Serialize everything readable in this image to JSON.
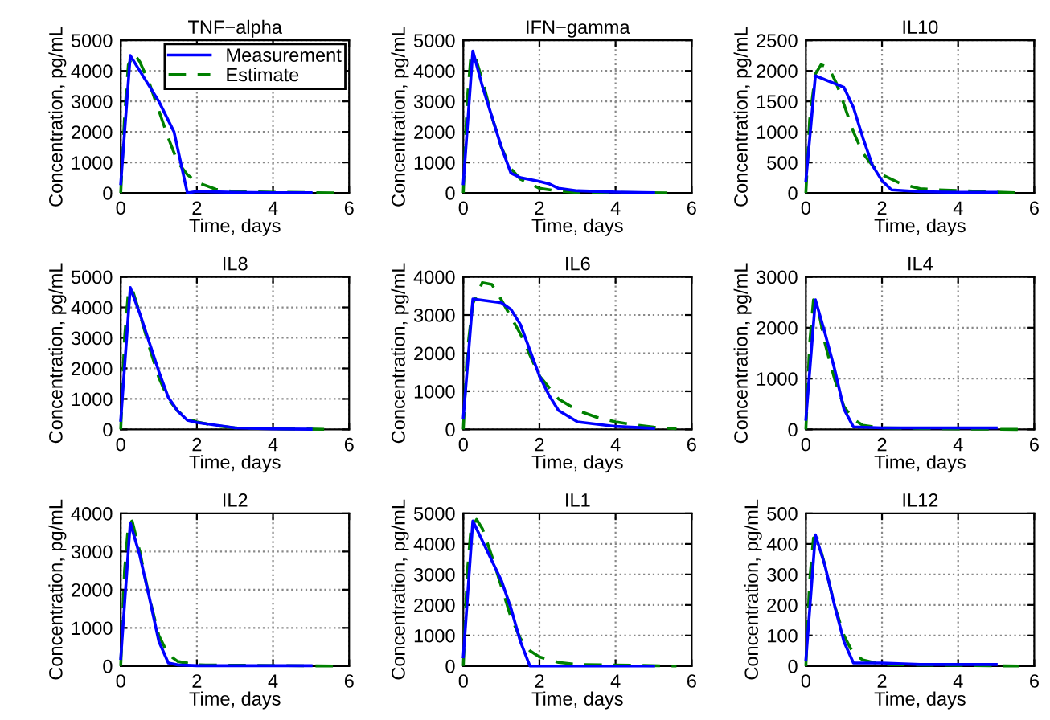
{
  "chart_data": [
    {
      "type": "line",
      "title": "TNF−alpha",
      "xlabel": "Time, days",
      "ylabel": "Concentration, pg/mL",
      "xlim": [
        0,
        6
      ],
      "xticks": [
        0,
        2,
        4,
        6
      ],
      "ylim": [
        0,
        5000
      ],
      "yticks": [
        0,
        1000,
        2000,
        3000,
        4000,
        5000
      ],
      "grid": true,
      "legend": "top right",
      "series": [
        {
          "name": "Measurement",
          "color": "#0000ff",
          "line_style": "solid",
          "x": [
            0,
            0.25,
            1,
            1.4,
            1.75,
            2,
            3,
            4,
            5
          ],
          "values": [
            300,
            4500,
            3000,
            2000,
            0,
            50,
            20,
            10,
            10
          ]
        },
        {
          "name": "Estimate",
          "color": "#008000",
          "line_style": "dashed",
          "x": [
            0,
            0.1,
            0.2,
            0.35,
            0.5,
            0.75,
            1,
            1.25,
            1.5,
            1.75,
            2,
            2.5,
            3,
            5.6
          ],
          "values": [
            0,
            2500,
            4200,
            4550,
            4300,
            3600,
            2700,
            1800,
            1000,
            600,
            350,
            120,
            40,
            0
          ]
        }
      ]
    },
    {
      "type": "line",
      "title": "IFN−gamma",
      "xlabel": "Time, days",
      "ylabel": "Concentration, pg/mL",
      "xlim": [
        0,
        6
      ],
      "xticks": [
        0,
        2,
        4,
        6
      ],
      "ylim": [
        0,
        5000
      ],
      "yticks": [
        0,
        1000,
        2000,
        3000,
        4000,
        5000
      ],
      "grid": true,
      "series": [
        {
          "color": "#0000ff",
          "line_style": "solid",
          "x": [
            0,
            0.25,
            0.5,
            1,
            1.25,
            1.5,
            2,
            2.25,
            2.5,
            3,
            4,
            5
          ],
          "values": [
            300,
            4650,
            3500,
            1500,
            650,
            500,
            380,
            300,
            150,
            70,
            30,
            10
          ]
        },
        {
          "color": "#008000",
          "line_style": "dashed",
          "x": [
            0,
            0.1,
            0.2,
            0.3,
            0.5,
            0.75,
            1,
            1.25,
            1.5,
            2,
            2.5,
            3,
            5.6
          ],
          "values": [
            0,
            3000,
            4500,
            4500,
            3700,
            2500,
            1500,
            800,
            450,
            150,
            60,
            20,
            0
          ]
        }
      ]
    },
    {
      "type": "line",
      "title": "IL10",
      "xlabel": "Time, days",
      "ylabel": "Concentration, pg/mL",
      "xlim": [
        0,
        6
      ],
      "xticks": [
        0,
        2,
        4,
        6
      ],
      "ylim": [
        0,
        2500
      ],
      "yticks": [
        0,
        500,
        1000,
        1500,
        2000,
        2500
      ],
      "grid": true,
      "series": [
        {
          "color": "#0000ff",
          "line_style": "solid",
          "x": [
            0,
            0.25,
            1,
            1.25,
            1.5,
            1.75,
            2,
            2.25,
            3,
            4,
            5
          ],
          "values": [
            200,
            1920,
            1730,
            1400,
            900,
            450,
            200,
            50,
            20,
            10,
            10
          ]
        },
        {
          "color": "#008000",
          "line_style": "dashed",
          "x": [
            0,
            0.1,
            0.25,
            0.4,
            0.6,
            0.8,
            1,
            1.25,
            1.5,
            1.75,
            2,
            2.5,
            3,
            3.5,
            5.6
          ],
          "values": [
            0,
            1200,
            1950,
            2100,
            2050,
            1800,
            1450,
            1000,
            650,
            450,
            300,
            150,
            70,
            50,
            0
          ]
        }
      ]
    },
    {
      "type": "line",
      "title": "IL8",
      "xlabel": "Time, days",
      "ylabel": "Concentration, pg/mL",
      "xlim": [
        0,
        6
      ],
      "xticks": [
        0,
        2,
        4,
        6
      ],
      "ylim": [
        0,
        5000
      ],
      "yticks": [
        0,
        1000,
        2000,
        3000,
        4000,
        5000
      ],
      "grid": true,
      "series": [
        {
          "color": "#0000ff",
          "line_style": "solid",
          "x": [
            0,
            0.25,
            0.5,
            1,
            1.25,
            1.5,
            1.75,
            2,
            3,
            4,
            5
          ],
          "values": [
            300,
            4650,
            3800,
            1900,
            1050,
            600,
            300,
            230,
            50,
            20,
            10
          ]
        },
        {
          "color": "#008000",
          "line_style": "dashed",
          "x": [
            0,
            0.1,
            0.2,
            0.3,
            0.5,
            0.75,
            1,
            1.25,
            1.5,
            1.75,
            2,
            2.5,
            3,
            5.6
          ],
          "values": [
            0,
            3000,
            4500,
            4600,
            3800,
            2700,
            1700,
            1000,
            600,
            350,
            250,
            120,
            50,
            0
          ]
        }
      ]
    },
    {
      "type": "line",
      "title": "IL6",
      "xlabel": "Time, days",
      "ylabel": "Concentration, pg/mL",
      "xlim": [
        0,
        6
      ],
      "xticks": [
        0,
        2,
        4,
        6
      ],
      "ylim": [
        0,
        4000
      ],
      "yticks": [
        0,
        1000,
        2000,
        3000,
        4000
      ],
      "grid": true,
      "series": [
        {
          "color": "#0000ff",
          "line_style": "solid",
          "x": [
            0,
            0.25,
            1,
            1.25,
            1.5,
            2,
            2.25,
            2.5,
            3,
            4,
            5
          ],
          "values": [
            300,
            3420,
            3320,
            3150,
            2750,
            1400,
            900,
            500,
            200,
            80,
            30
          ]
        },
        {
          "color": "#008000",
          "line_style": "dashed",
          "x": [
            0,
            0.1,
            0.25,
            0.5,
            0.75,
            1,
            1.5,
            2,
            2.5,
            3,
            3.5,
            4,
            4.5,
            5,
            5.6
          ],
          "values": [
            0,
            2000,
            3300,
            3850,
            3800,
            3400,
            2500,
            1400,
            800,
            500,
            320,
            200,
            120,
            60,
            20
          ]
        }
      ]
    },
    {
      "type": "line",
      "title": "IL4",
      "xlabel": "Time, days",
      "ylabel": "Concentration, pg/mL",
      "xlim": [
        0,
        6
      ],
      "xticks": [
        0,
        2,
        4,
        6
      ],
      "ylim": [
        0,
        3000
      ],
      "yticks": [
        0,
        1000,
        2000,
        3000
      ],
      "grid": true,
      "series": [
        {
          "color": "#0000ff",
          "line_style": "solid",
          "x": [
            0,
            0.25,
            0.5,
            0.75,
            1,
            1.25,
            2,
            3,
            4,
            5
          ],
          "values": [
            200,
            2550,
            1900,
            1200,
            400,
            50,
            30,
            30,
            30,
            30
          ]
        },
        {
          "color": "#008000",
          "line_style": "dashed",
          "x": [
            0,
            0.1,
            0.2,
            0.3,
            0.5,
            0.75,
            1,
            1.25,
            1.5,
            2,
            3,
            5.6
          ],
          "values": [
            0,
            1700,
            2550,
            2450,
            1700,
            1000,
            450,
            200,
            80,
            30,
            20,
            0
          ]
        }
      ]
    },
    {
      "type": "line",
      "title": "IL2",
      "xlabel": "Time, days",
      "ylabel": "Concentration, pg/mL",
      "xlim": [
        0,
        6
      ],
      "xticks": [
        0,
        2,
        4,
        6
      ],
      "ylim": [
        0,
        4000
      ],
      "yticks": [
        0,
        1000,
        2000,
        3000,
        4000
      ],
      "grid": true,
      "series": [
        {
          "color": "#0000ff",
          "line_style": "solid",
          "x": [
            0,
            0.25,
            0.5,
            0.75,
            1,
            1.25,
            1.5,
            2,
            3,
            4,
            5
          ],
          "values": [
            200,
            3750,
            2900,
            1800,
            650,
            80,
            30,
            10,
            10,
            10,
            10
          ]
        },
        {
          "color": "#008000",
          "line_style": "dashed",
          "x": [
            0,
            0.1,
            0.2,
            0.3,
            0.5,
            0.75,
            1,
            1.25,
            1.5,
            2,
            5.6
          ],
          "values": [
            0,
            2500,
            3700,
            3800,
            3000,
            1800,
            800,
            300,
            120,
            30,
            0
          ]
        }
      ]
    },
    {
      "type": "line",
      "title": "IL1",
      "xlabel": "Time, days",
      "ylabel": "Concentration, pg/mL",
      "xlim": [
        0,
        6
      ],
      "xticks": [
        0,
        2,
        4,
        6
      ],
      "ylim": [
        0,
        5000
      ],
      "yticks": [
        0,
        1000,
        2000,
        3000,
        4000,
        5000
      ],
      "grid": true,
      "series": [
        {
          "color": "#0000ff",
          "line_style": "solid",
          "x": [
            0,
            0.25,
            0.5,
            1,
            1.25,
            1.5,
            1.75,
            2,
            3,
            4,
            5
          ],
          "values": [
            300,
            4750,
            4100,
            2800,
            1900,
            800,
            0,
            0,
            0,
            0,
            0
          ]
        },
        {
          "color": "#008000",
          "line_style": "dashed",
          "x": [
            0,
            0.1,
            0.2,
            0.35,
            0.5,
            0.75,
            1,
            1.25,
            1.5,
            1.75,
            2,
            2.5,
            3,
            5.6
          ],
          "values": [
            0,
            3000,
            4500,
            4800,
            4500,
            3600,
            2600,
            1600,
            900,
            500,
            300,
            120,
            50,
            0
          ]
        }
      ]
    },
    {
      "type": "line",
      "title": "IL12",
      "xlabel": "Time, days",
      "ylabel": "Concentration, pg/mL",
      "xlim": [
        0,
        6
      ],
      "xticks": [
        0,
        2,
        4,
        6
      ],
      "ylim": [
        0,
        500
      ],
      "yticks": [
        0,
        100,
        200,
        300,
        400,
        500
      ],
      "grid": true,
      "series": [
        {
          "color": "#0000ff",
          "line_style": "solid",
          "x": [
            0,
            0.25,
            0.5,
            0.75,
            1,
            1.25,
            2,
            3,
            4,
            5
          ],
          "values": [
            20,
            430,
            330,
            200,
            80,
            10,
            10,
            5,
            5,
            5
          ]
        },
        {
          "color": "#008000",
          "line_style": "dashed",
          "x": [
            0,
            0.1,
            0.2,
            0.3,
            0.5,
            0.75,
            1,
            1.25,
            1.5,
            2,
            5.6
          ],
          "values": [
            0,
            280,
            420,
            420,
            330,
            200,
            100,
            40,
            20,
            5,
            0
          ]
        }
      ]
    }
  ]
}
